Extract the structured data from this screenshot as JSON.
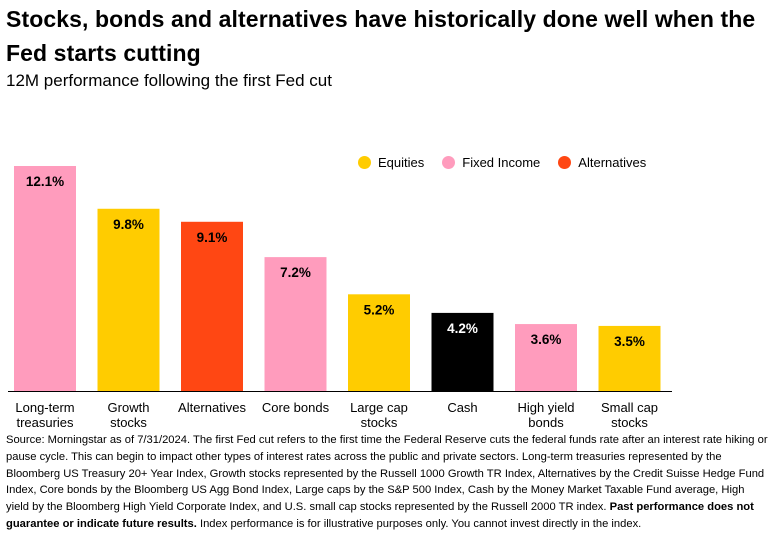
{
  "header": {
    "title": "Stocks, bonds and alternatives have historically done well when the Fed starts cutting",
    "subtitle": "12M performance following the first Fed cut"
  },
  "legend": [
    {
      "label": "Equities",
      "color": "#FFCC00"
    },
    {
      "label": "Fixed Income",
      "color": "#FF9CBD"
    },
    {
      "label": "Alternatives",
      "color": "#FF4713"
    }
  ],
  "colors": {
    "equities": "#FFCC00",
    "fixed_income": "#FF9CBD",
    "alternatives": "#FF4713",
    "cash": "#000000"
  },
  "chart_data": {
    "type": "bar",
    "title": "",
    "xlabel": "",
    "ylabel": "",
    "ylim": [
      0,
      12.1
    ],
    "categories": [
      [
        "Long-term",
        "treasuries"
      ],
      [
        "Growth",
        "stocks"
      ],
      [
        "Alternatives"
      ],
      [
        "Core bonds"
      ],
      [
        "Large cap",
        "stocks"
      ],
      [
        "Cash"
      ],
      [
        "High yield",
        "bonds"
      ],
      [
        "Small cap",
        "stocks"
      ]
    ],
    "values": [
      12.1,
      9.8,
      9.1,
      7.2,
      5.2,
      4.2,
      3.6,
      3.5
    ],
    "data_labels": [
      "12.1%",
      "9.8%",
      "9.1%",
      "7.2%",
      "5.2%",
      "4.2%",
      "3.6%",
      "3.5%"
    ],
    "groups": [
      "fixed_income",
      "equities",
      "alternatives",
      "fixed_income",
      "equities",
      "cash",
      "fixed_income",
      "equities"
    ],
    "legend_position": "top-right",
    "grid": false
  },
  "source": {
    "text_1": "Source: Morningstar as of 7/31/2024. The first Fed cut refers to the first time the Federal Reserve cuts the federal funds rate after an interest rate hiking or pause cycle. This can begin to impact other types of interest rates across the public and private sectors. Long-term treasuries represented by the Bloomberg US Treasury 20+ Year Index, Growth stocks represented by the Russell 1000 Growth TR Index, Alternatives by the Credit Suisse Hedge Fund Index, Core bonds by the Bloomberg US Agg Bond Index, Large caps by the S&P 500 Index, Cash by the Money Market Taxable Fund average, High yield by the Bloomberg High Yield Corporate Index, and U.S. small cap stocks represented by the Russell 2000 TR index. ",
    "bold": "Past performance does not guarantee or indicate future results.",
    "text_2": " Index performance is for illustrative purposes only. You cannot invest directly in the index."
  }
}
